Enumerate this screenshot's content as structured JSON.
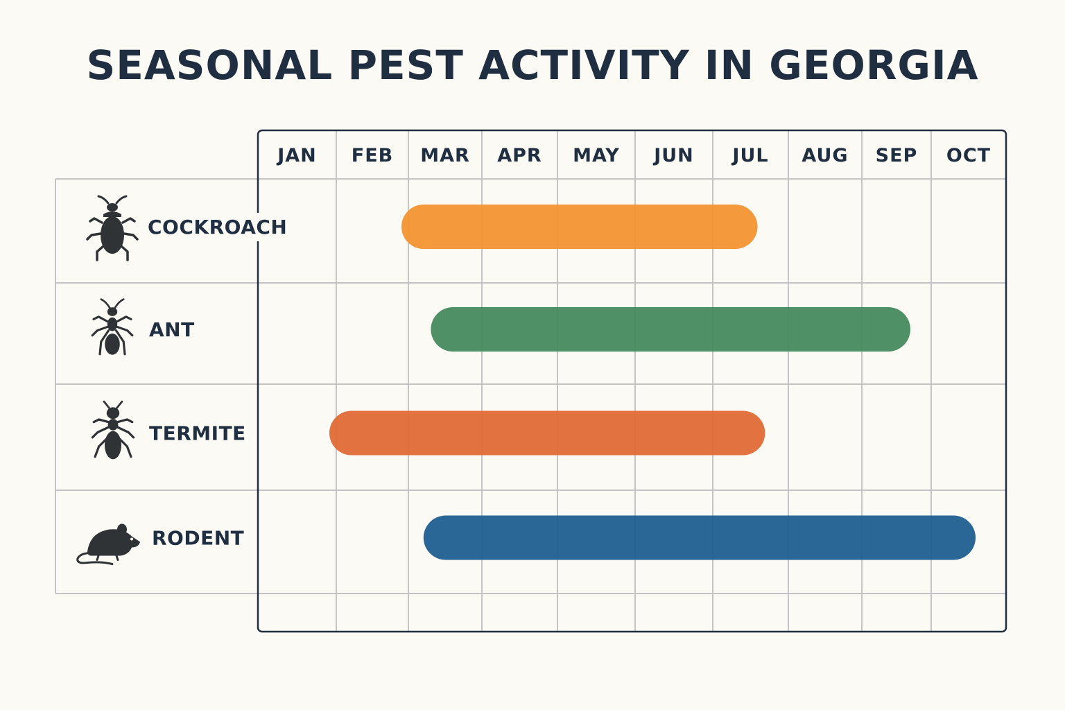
{
  "chart_data": {
    "type": "gantt",
    "title": "SEASONAL PEST ACTIVITY IN GEORGIA",
    "months": [
      "JAN",
      "FEB",
      "MAR",
      "APR",
      "MAY",
      "JUN",
      "JUL",
      "AUG",
      "SEP",
      "OCT"
    ],
    "series": [
      {
        "name": "COCKROACH",
        "icon": "cockroach-icon",
        "start": 3.0,
        "end": 7.5,
        "color": "#f39331"
      },
      {
        "name": "ANT",
        "icon": "ant-icon",
        "start": 3.4,
        "end": 9.6,
        "color": "#468a5e"
      },
      {
        "name": "TERMITE",
        "icon": "termite-icon",
        "start": 2.0,
        "end": 7.6,
        "color": "#e06a36"
      },
      {
        "name": "RODENT",
        "icon": "rodent-icon",
        "start": 3.3,
        "end": 10.5,
        "color": "#1f5f91"
      }
    ],
    "grid": true
  },
  "colors": {
    "background": "#fcfaf5",
    "text": "#1f2e40",
    "grid": "#c4c4c4",
    "frame": "#1f2e40",
    "icon": "#2f3336"
  }
}
